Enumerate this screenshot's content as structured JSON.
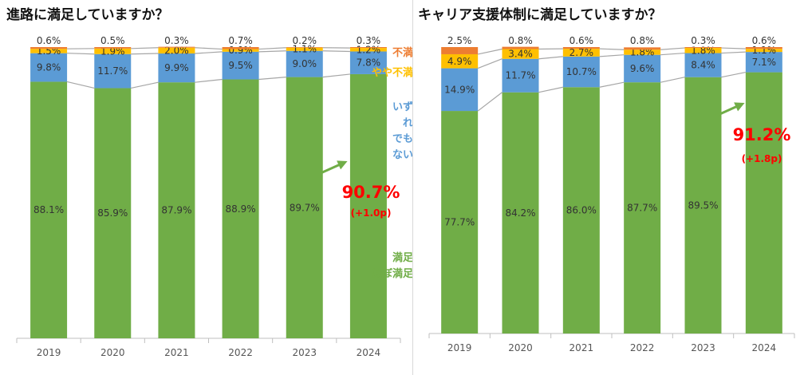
{
  "chart_data": [
    {
      "type": "bar",
      "stacked": true,
      "title": "進路に満足していますか？",
      "categories": [
        "2019",
        "2020",
        "2021",
        "2022",
        "2023",
        "2024"
      ],
      "series": [
        {
          "name": "満足 ほぼ満足",
          "color": "#70ad47",
          "values": [
            88.1,
            85.9,
            87.9,
            88.9,
            89.7,
            90.7
          ]
        },
        {
          "name": "いずれでもない",
          "color": "#5b9bd5",
          "values": [
            9.8,
            11.7,
            9.9,
            9.5,
            9.0,
            7.8
          ]
        },
        {
          "name": "やや不満",
          "color": "#ffc000",
          "values": [
            1.5,
            1.9,
            2.0,
            0.9,
            1.1,
            1.2
          ]
        },
        {
          "name": "不満",
          "color": "#ed7d31",
          "values": [
            0.6,
            0.5,
            0.3,
            0.7,
            0.2,
            0.3
          ]
        }
      ],
      "labels": [
        [
          "88.1%",
          "85.9%",
          "87.9%",
          "88.9%",
          "89.7%",
          ""
        ],
        [
          "9.8%",
          "11.7%",
          "9.9%",
          "9.5%",
          "9.0%",
          "7.8%"
        ],
        [
          "1.5%",
          "1.9%",
          "2.0%",
          "0.9%",
          "1.1%",
          "1.2%"
        ],
        [
          "0.6%",
          "0.5%",
          "0.3%",
          "0.7%",
          "0.2%",
          "0.3%"
        ]
      ],
      "ylim": [
        0,
        100
      ],
      "highlight": {
        "value": "90.7%",
        "change": "(+1.0p)"
      },
      "legend": [
        {
          "lines": [
            "不満"
          ],
          "color": "#ed7d31"
        },
        {
          "lines": [
            "やや不満"
          ],
          "color": "#ffc000"
        },
        {
          "lines": [
            "いず",
            "れ",
            "でも",
            "ない"
          ],
          "color": "#5b9bd5"
        },
        {
          "lines": [
            "満足",
            "ほぼ満足"
          ],
          "color": "#70ad47"
        }
      ]
    },
    {
      "type": "bar",
      "stacked": true,
      "title": "キャリア支援体制に満足していますか？",
      "categories": [
        "2019",
        "2020",
        "2021",
        "2022",
        "2023",
        "2024"
      ],
      "series": [
        {
          "name": "満足 ほぼ満足",
          "color": "#70ad47",
          "values": [
            77.7,
            84.2,
            86.0,
            87.7,
            89.5,
            91.2
          ]
        },
        {
          "name": "いずれでもない",
          "color": "#5b9bd5",
          "values": [
            14.9,
            11.7,
            10.7,
            9.6,
            8.4,
            7.1
          ]
        },
        {
          "name": "やや不満",
          "color": "#ffc000",
          "values": [
            4.9,
            3.4,
            2.7,
            1.8,
            1.8,
            1.1
          ]
        },
        {
          "name": "不満",
          "color": "#ed7d31",
          "values": [
            2.5,
            0.8,
            0.6,
            0.8,
            0.3,
            0.6
          ]
        }
      ],
      "labels": [
        [
          "77.7%",
          "84.2%",
          "86.0%",
          "87.7%",
          "89.5%",
          ""
        ],
        [
          "14.9%",
          "11.7%",
          "10.7%",
          "9.6%",
          "8.4%",
          "7.1%"
        ],
        [
          "4.9%",
          "3.4%",
          "2.7%",
          "1.8%",
          "1.8%",
          "1.1%"
        ],
        [
          "2.5%",
          "0.8%",
          "0.6%",
          "0.8%",
          "0.3%",
          "0.6%"
        ]
      ],
      "ylim": [
        0,
        100
      ],
      "highlight": {
        "value": "91.2%",
        "change": "(+1.8p)"
      },
      "legend": []
    }
  ]
}
